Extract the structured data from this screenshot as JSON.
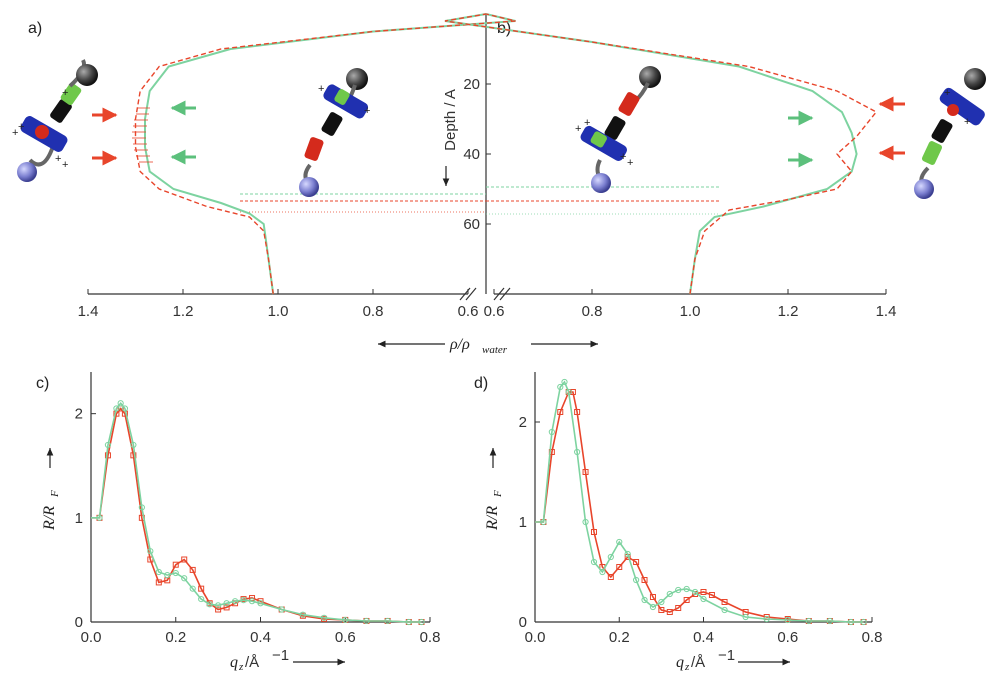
{
  "colors": {
    "green": "#7dd3a0",
    "red": "#e8452b",
    "ball_black": "#333333",
    "ball_blue": "#7b7fd0",
    "block_blue": "#2030b0",
    "block_green": "#6fc84a",
    "block_red": "#d42a1c",
    "block_black": "#111111"
  },
  "panels": {
    "a": "a)",
    "b": "b)",
    "c": "c)",
    "d": "d)"
  },
  "top_axis": {
    "depth_label": "Depth / A",
    "rho_label_main": "ρ/ρ",
    "rho_label_sub": "water",
    "left_ticks": [
      "1.4",
      "1.2",
      "1.0",
      "0.8",
      "0.6"
    ],
    "right_ticks": [
      "0.6",
      "0.8",
      "1.0",
      "1.2",
      "1.4"
    ],
    "depth_ticks": [
      "20",
      "40",
      "60"
    ]
  },
  "bottom_axis": {
    "ylabel_main": "R/R",
    "ylabel_sub": "F",
    "xlabel_main": "q",
    "xlabel_sub": "z",
    "xlabel_unit": "/Å",
    "xlabel_sup": "−1",
    "xticks": [
      "0.0",
      "0.2",
      "0.4",
      "0.6",
      "0.8"
    ],
    "c_yticks": [
      "0",
      "1",
      "2"
    ],
    "d_yticks": [
      "0",
      "1",
      "2"
    ]
  },
  "chart_data": [
    {
      "type": "line",
      "panel": "a",
      "xlabel": "ρ/ρwater",
      "ylabel": "Depth / A",
      "xlim": [
        1.4,
        0.5
      ],
      "ylim": [
        0,
        80
      ],
      "series": [
        {
          "color": "green",
          "x": [
            1.01,
            1.02,
            1.03,
            1.06,
            1.12,
            1.22,
            1.27,
            1.28,
            1.28,
            1.27,
            1.23,
            1.1,
            0.8,
            0.5
          ],
          "y": [
            80,
            70,
            60,
            57,
            54,
            50,
            45,
            38,
            30,
            22,
            15,
            10,
            5,
            2
          ]
        },
        {
          "color": "red",
          "x": [
            1.01,
            1.02,
            1.03,
            1.06,
            1.15,
            1.25,
            1.29,
            1.3,
            1.3,
            1.29,
            1.25,
            1.12,
            0.8,
            0.5
          ],
          "y": [
            80,
            70,
            62,
            58,
            55,
            50,
            45,
            38,
            30,
            22,
            15,
            10,
            5,
            2
          ]
        }
      ]
    },
    {
      "type": "line",
      "panel": "b",
      "xlabel": "ρ/ρwater",
      "ylabel": "Depth / A",
      "xlim": [
        0.5,
        1.4
      ],
      "ylim": [
        0,
        80
      ],
      "series": [
        {
          "color": "green",
          "x": [
            1.0,
            1.01,
            1.02,
            1.05,
            1.15,
            1.28,
            1.33,
            1.34,
            1.33,
            1.31,
            1.25,
            1.1,
            0.8,
            0.5
          ],
          "y": [
            80,
            70,
            62,
            58,
            55,
            50,
            45,
            40,
            34,
            28,
            22,
            15,
            8,
            2
          ]
        },
        {
          "color": "red",
          "x": [
            1.0,
            1.01,
            1.03,
            1.08,
            1.2,
            1.3,
            1.33,
            1.3,
            1.34,
            1.38,
            1.3,
            1.12,
            0.8,
            0.5
          ],
          "y": [
            80,
            70,
            62,
            56,
            53,
            50,
            45,
            40,
            35,
            28,
            22,
            15,
            8,
            2
          ]
        }
      ]
    },
    {
      "type": "line",
      "panel": "c",
      "xlabel": "qz/Å−1",
      "ylabel": "R/RF",
      "xlim": [
        0,
        0.8
      ],
      "ylim": [
        0,
        2.4
      ],
      "series": [
        {
          "color": "red",
          "marker": "square",
          "x": [
            0.02,
            0.04,
            0.06,
            0.07,
            0.08,
            0.1,
            0.12,
            0.14,
            0.16,
            0.18,
            0.2,
            0.22,
            0.24,
            0.26,
            0.28,
            0.3,
            0.32,
            0.34,
            0.36,
            0.38,
            0.4,
            0.45,
            0.5,
            0.55,
            0.6,
            0.65,
            0.7,
            0.75,
            0.78
          ],
          "y": [
            1.0,
            1.6,
            2.0,
            2.05,
            2.0,
            1.6,
            1.0,
            0.6,
            0.38,
            0.4,
            0.55,
            0.6,
            0.5,
            0.32,
            0.18,
            0.12,
            0.14,
            0.18,
            0.22,
            0.23,
            0.2,
            0.12,
            0.06,
            0.03,
            0.02,
            0.01,
            0.01,
            0.0,
            0.0
          ]
        },
        {
          "color": "green",
          "marker": "circle",
          "x": [
            0.02,
            0.04,
            0.06,
            0.07,
            0.08,
            0.1,
            0.12,
            0.14,
            0.16,
            0.18,
            0.2,
            0.22,
            0.24,
            0.26,
            0.28,
            0.3,
            0.32,
            0.34,
            0.36,
            0.38,
            0.4,
            0.45,
            0.5,
            0.55,
            0.6,
            0.65,
            0.7,
            0.75,
            0.78
          ],
          "y": [
            1.0,
            1.7,
            2.05,
            2.1,
            2.05,
            1.7,
            1.1,
            0.68,
            0.48,
            0.45,
            0.47,
            0.42,
            0.32,
            0.22,
            0.17,
            0.16,
            0.18,
            0.2,
            0.21,
            0.2,
            0.18,
            0.12,
            0.07,
            0.04,
            0.02,
            0.01,
            0.01,
            0.0,
            0.0
          ]
        }
      ]
    },
    {
      "type": "line",
      "panel": "d",
      "xlabel": "qz/Å−1",
      "ylabel": "R/RF",
      "xlim": [
        0,
        0.8
      ],
      "ylim": [
        0,
        2.5
      ],
      "series": [
        {
          "color": "red",
          "marker": "square",
          "x": [
            0.02,
            0.04,
            0.06,
            0.08,
            0.09,
            0.1,
            0.12,
            0.14,
            0.16,
            0.18,
            0.2,
            0.22,
            0.24,
            0.26,
            0.28,
            0.3,
            0.32,
            0.34,
            0.36,
            0.38,
            0.4,
            0.42,
            0.45,
            0.5,
            0.55,
            0.6,
            0.65,
            0.7,
            0.75,
            0.78
          ],
          "y": [
            1.0,
            1.7,
            2.1,
            2.3,
            2.3,
            2.1,
            1.5,
            0.9,
            0.55,
            0.45,
            0.55,
            0.65,
            0.6,
            0.42,
            0.25,
            0.12,
            0.1,
            0.14,
            0.22,
            0.28,
            0.3,
            0.27,
            0.2,
            0.1,
            0.05,
            0.03,
            0.01,
            0.01,
            0.0,
            0.0
          ]
        },
        {
          "color": "green",
          "marker": "circle",
          "x": [
            0.02,
            0.04,
            0.06,
            0.07,
            0.08,
            0.1,
            0.12,
            0.14,
            0.16,
            0.18,
            0.2,
            0.22,
            0.24,
            0.26,
            0.28,
            0.3,
            0.32,
            0.34,
            0.36,
            0.38,
            0.4,
            0.45,
            0.5,
            0.55,
            0.6,
            0.65,
            0.7,
            0.75,
            0.78
          ],
          "y": [
            1.0,
            1.9,
            2.35,
            2.4,
            2.3,
            1.7,
            1.0,
            0.6,
            0.5,
            0.65,
            0.8,
            0.68,
            0.42,
            0.22,
            0.15,
            0.2,
            0.28,
            0.32,
            0.33,
            0.3,
            0.23,
            0.12,
            0.05,
            0.03,
            0.02,
            0.01,
            0.01,
            0.0,
            0.0
          ]
        }
      ]
    }
  ]
}
